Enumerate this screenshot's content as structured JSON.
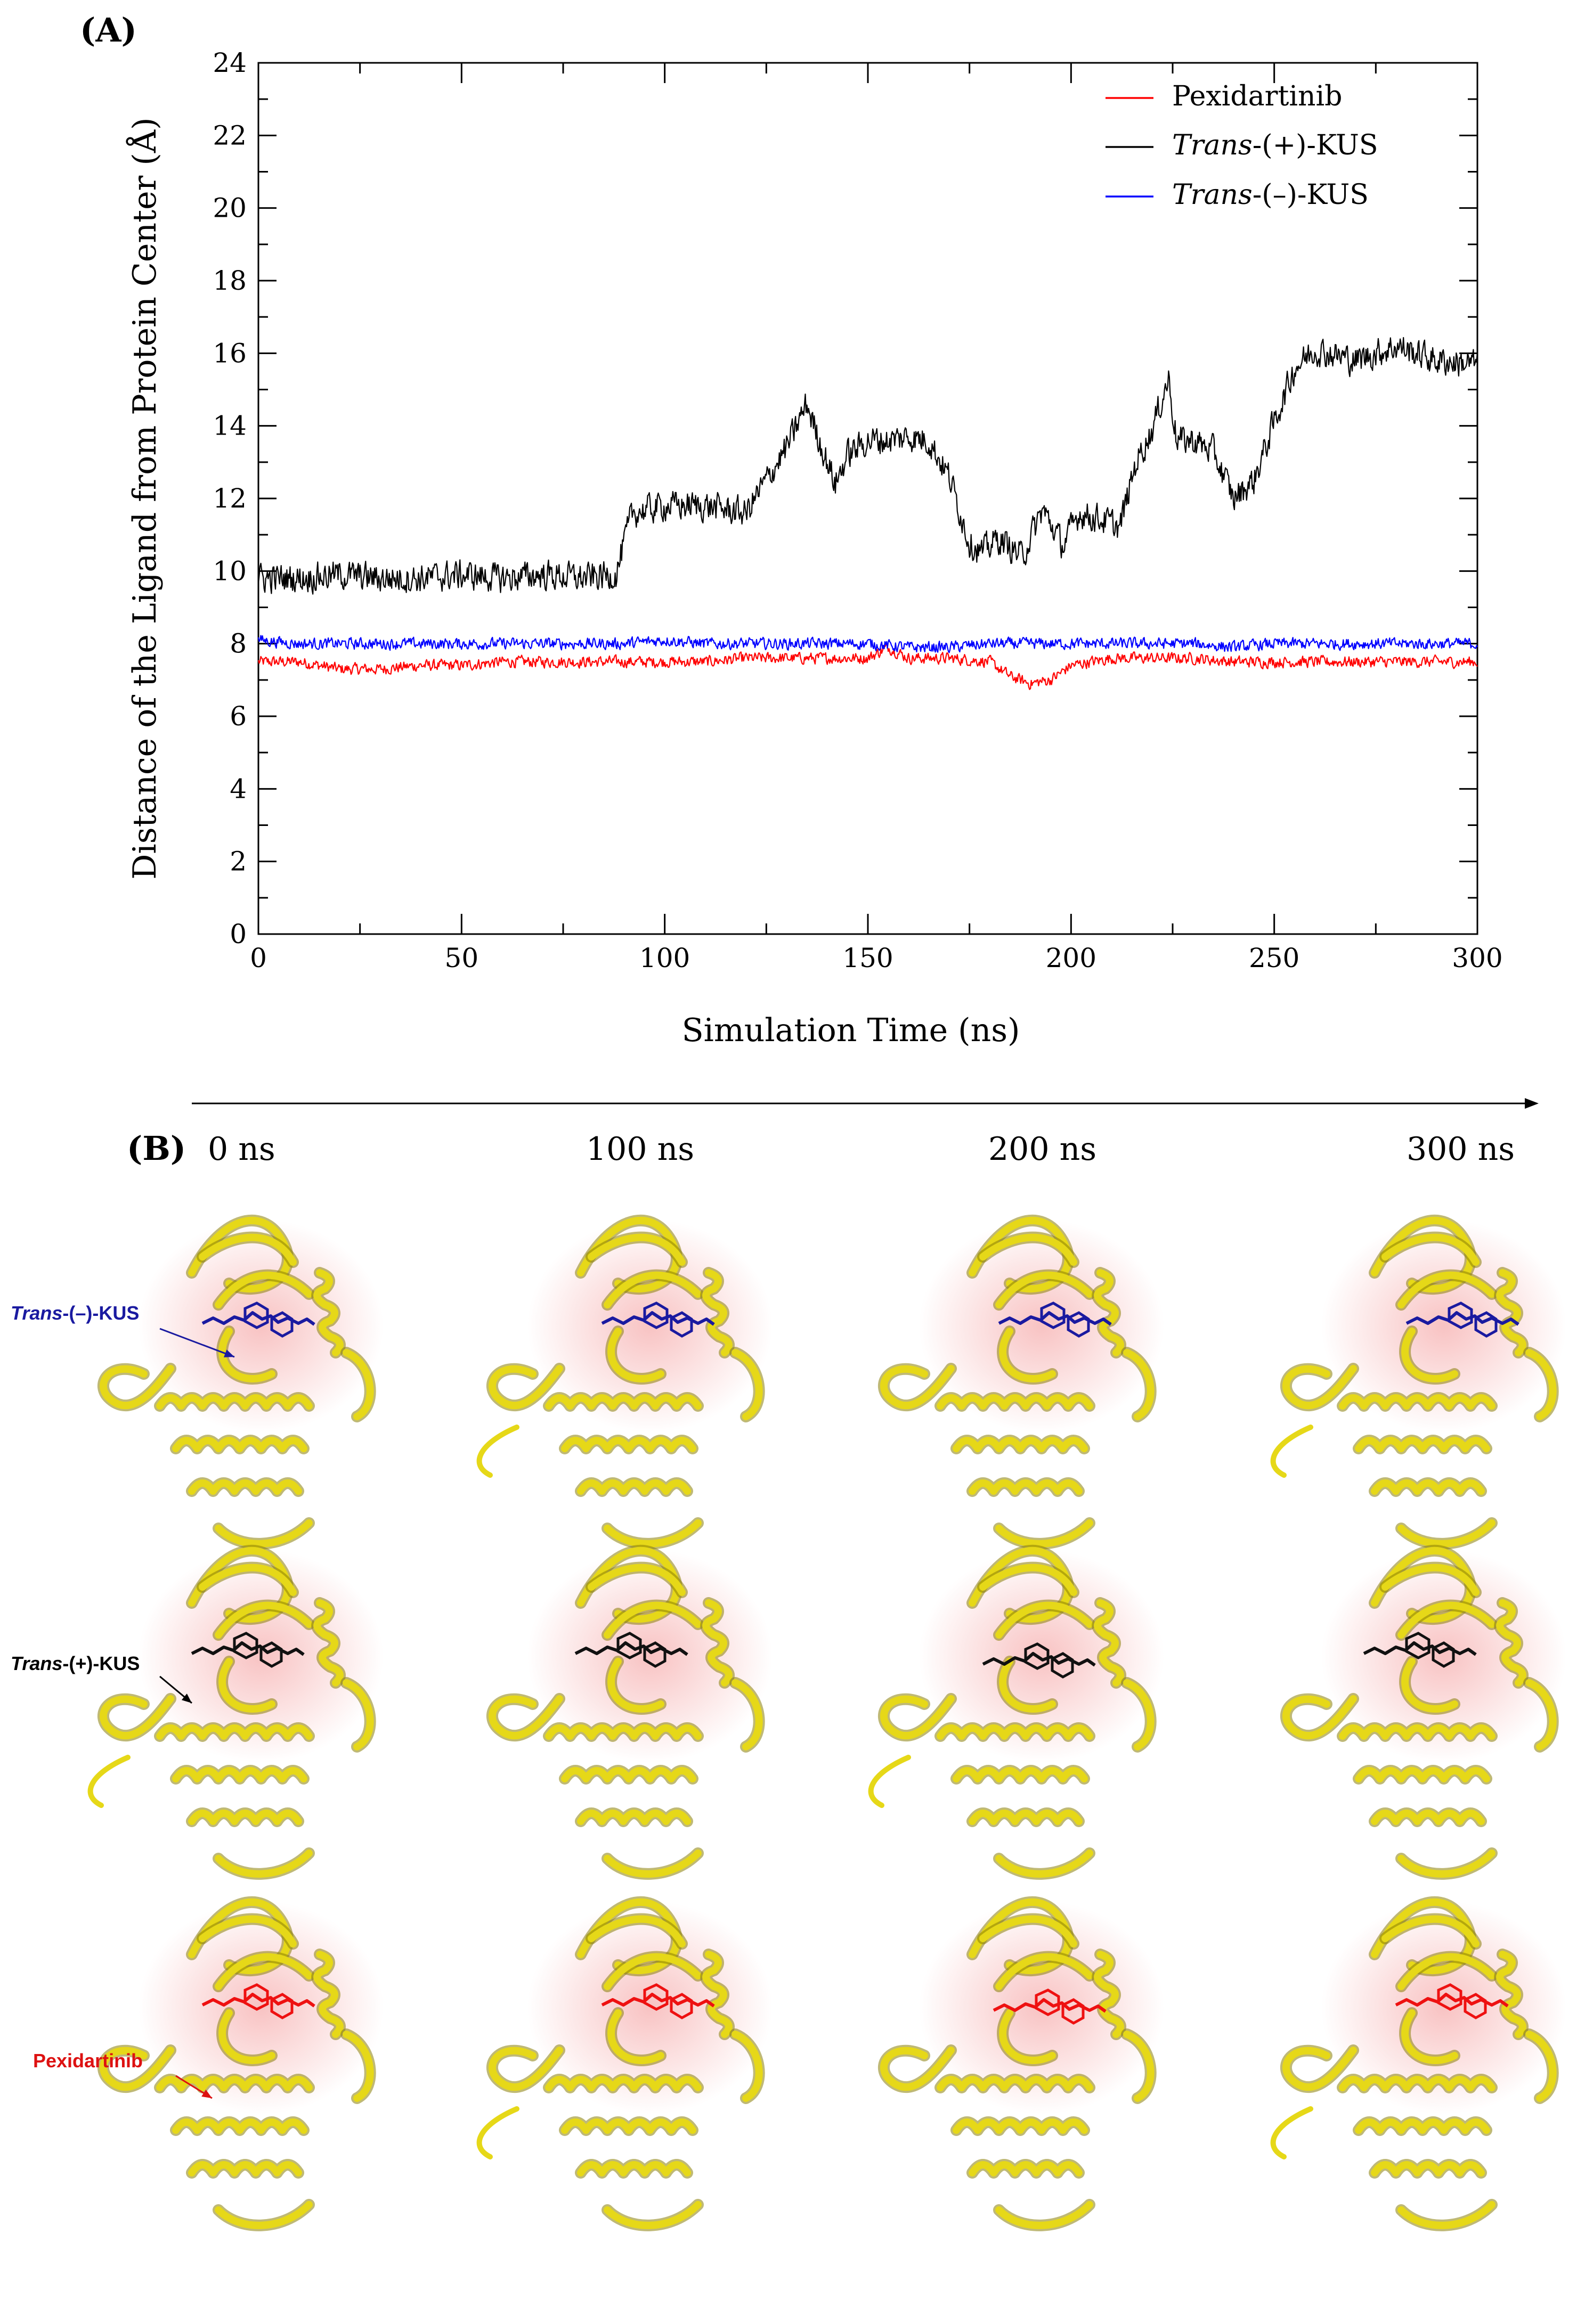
{
  "panel_a_label": "(A)",
  "panel_b_label": "(B)",
  "colors": {
    "pexidartinib": "#ff0000",
    "trans_plus": "#000000",
    "trans_minus": "#0000ff",
    "protein": "#e6d818",
    "protein_dark": "#8a7f05",
    "pocket_glow": "#f7b8b8"
  },
  "chart_data": {
    "type": "line",
    "title": "",
    "xlabel": "Simulation Time (ns)",
    "ylabel": "Distance of the Ligand from Protein Center (Å)",
    "xlim": [
      0,
      300
    ],
    "ylim": [
      0,
      24
    ],
    "xticks": [
      0,
      50,
      100,
      150,
      200,
      250,
      300
    ],
    "yticks": [
      0,
      2,
      4,
      6,
      8,
      10,
      12,
      14,
      16,
      18,
      20,
      22,
      24
    ],
    "legend_position": "top-right",
    "series": [
      {
        "name": "Pexidartinib",
        "italic_prefix": "",
        "suffix": "Pexidartinib",
        "color": "#ff0000",
        "x": [
          0,
          10,
          20,
          30,
          40,
          50,
          60,
          70,
          80,
          90,
          100,
          110,
          120,
          130,
          140,
          150,
          155,
          160,
          170,
          180,
          185,
          190,
          195,
          200,
          210,
          220,
          230,
          240,
          250,
          260,
          270,
          280,
          290,
          300
        ],
        "y": [
          7.5,
          7.5,
          7.3,
          7.3,
          7.4,
          7.4,
          7.5,
          7.5,
          7.5,
          7.5,
          7.5,
          7.5,
          7.6,
          7.6,
          7.6,
          7.6,
          7.9,
          7.6,
          7.6,
          7.5,
          7.1,
          6.9,
          7.0,
          7.4,
          7.6,
          7.6,
          7.6,
          7.5,
          7.5,
          7.5,
          7.5,
          7.5,
          7.5,
          7.5
        ],
        "noise": 0.14
      },
      {
        "name": "Trans-(+)-KUS",
        "italic_prefix": "Trans",
        "suffix": "-(+)-KUS",
        "color": "#000000",
        "x": [
          0,
          10,
          20,
          30,
          40,
          50,
          60,
          70,
          80,
          88,
          92,
          100,
          110,
          120,
          125,
          130,
          135,
          138,
          142,
          145,
          150,
          155,
          160,
          165,
          170,
          175,
          178,
          182,
          188,
          193,
          198,
          202,
          208,
          212,
          216,
          220,
          224,
          226,
          230,
          235,
          240,
          245,
          250,
          255,
          260,
          270,
          280,
          290,
          300
        ],
        "y": [
          9.8,
          9.8,
          9.9,
          9.8,
          9.8,
          9.9,
          9.8,
          9.9,
          9.8,
          9.9,
          11.6,
          11.8,
          11.8,
          11.6,
          12.5,
          13.4,
          14.6,
          13.6,
          12.4,
          13.2,
          13.6,
          13.6,
          13.7,
          13.6,
          12.6,
          10.8,
          10.5,
          10.9,
          10.4,
          11.7,
          10.7,
          11.6,
          11.4,
          11.2,
          13.0,
          13.9,
          15.3,
          13.6,
          13.6,
          13.3,
          12.0,
          12.5,
          14.1,
          15.6,
          16.1,
          15.8,
          16.2,
          15.8,
          15.7
        ],
        "noise": 0.36
      },
      {
        "name": "Trans-(–)-KUS",
        "italic_prefix": "Trans",
        "suffix": "-(–)-KUS",
        "color": "#0000ff",
        "x": [
          0,
          10,
          20,
          30,
          40,
          50,
          60,
          70,
          80,
          90,
          100,
          110,
          120,
          130,
          140,
          150,
          160,
          170,
          180,
          190,
          200,
          210,
          220,
          230,
          240,
          250,
          260,
          270,
          280,
          290,
          300
        ],
        "y": [
          8.1,
          8.0,
          8.0,
          8.0,
          8.0,
          8.0,
          8.0,
          8.0,
          8.0,
          8.0,
          8.1,
          8.0,
          8.0,
          8.0,
          8.0,
          8.0,
          7.9,
          7.9,
          8.0,
          8.0,
          8.0,
          8.0,
          8.0,
          8.0,
          7.9,
          8.0,
          8.0,
          8.0,
          8.0,
          8.0,
          8.0
        ],
        "noise": 0.14
      }
    ]
  },
  "timeline": {
    "time_labels": [
      "0 ns",
      "100 ns",
      "200 ns",
      "300 ns"
    ],
    "row_labels": [
      {
        "italic": "Trans",
        "rest": "-(–)-KUS",
        "color": "#1a1aa0",
        "ligand_color": "#1a1aa0"
      },
      {
        "italic": "Trans",
        "rest": "-(+)-KUS",
        "color": "#000000",
        "ligand_color": "#111111"
      },
      {
        "italic": "",
        "rest": "Pexidartinib",
        "color": "#dd1111",
        "ligand_color": "#ee1111"
      }
    ]
  }
}
